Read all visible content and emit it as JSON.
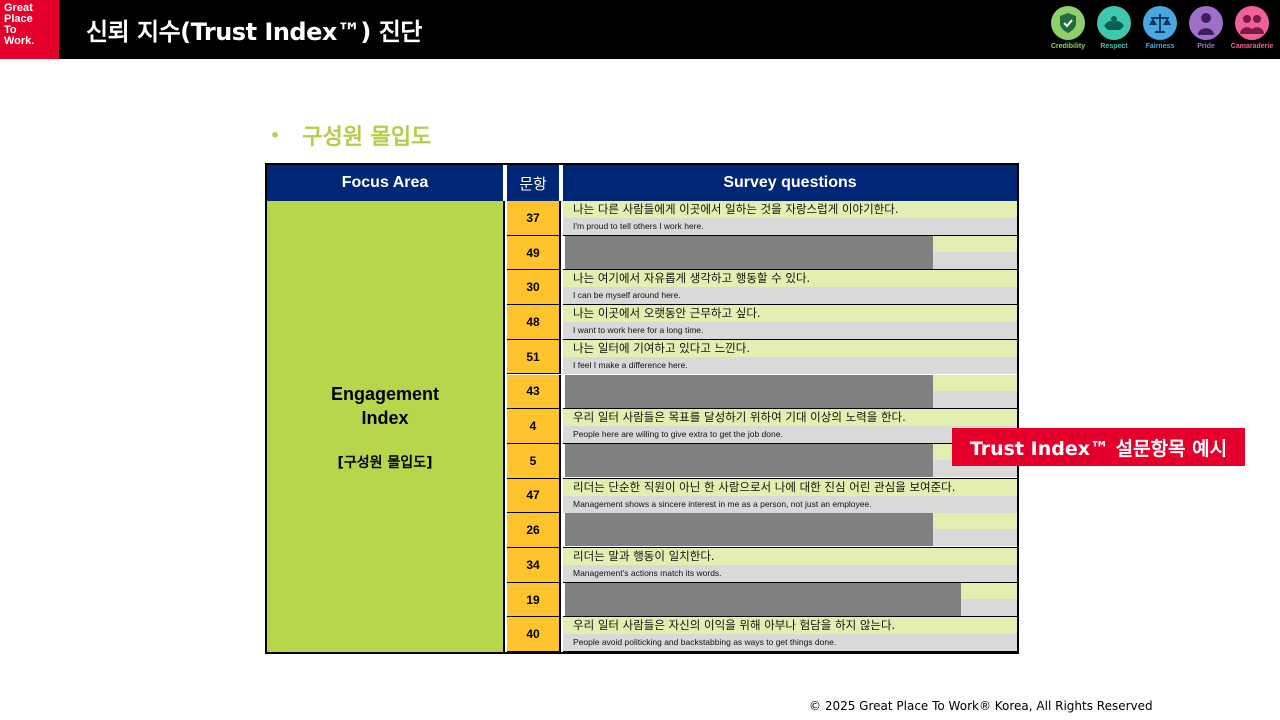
{
  "header": {
    "logo_lines": [
      "Great",
      "Place",
      "To",
      "Work."
    ],
    "title": "신뢰 지수(Trust Index™) 진단",
    "icons": [
      {
        "name": "credibility-icon",
        "label": "Credibility",
        "color": "#8ed16c"
      },
      {
        "name": "respect-icon",
        "label": "Respect",
        "color": "#3fc7b0"
      },
      {
        "name": "fairness-icon",
        "label": "Fairness",
        "color": "#4aa8e0"
      },
      {
        "name": "pride-icon",
        "label": "Pride",
        "color": "#a070c8"
      },
      {
        "name": "camaraderie-icon",
        "label": "Camaraderie",
        "color": "#f0609a"
      }
    ]
  },
  "section_title": "구성원 몰입도",
  "table": {
    "headers": {
      "focus_area": "Focus Area",
      "number": "문항",
      "questions": "Survey questions"
    },
    "focus": {
      "name_line1": "Engagement",
      "name_line2": "Index",
      "korean": "[구성원 몰입도]"
    },
    "rows": [
      {
        "num": "37",
        "ko": "나는 다른 사람들에게 이곳에서 일하는 것을 자랑스럽게 이야기한다.",
        "en": "I'm proud to tell others I work here.",
        "masked": false
      },
      {
        "num": "49",
        "masked": true
      },
      {
        "num": "30",
        "ko": "나는 여기에서 자유롭게 생각하고 행동할 수 있다.",
        "en": "I can be myself around here.",
        "masked": false
      },
      {
        "num": "48",
        "ko": "나는 이곳에서 오랫동안 근무하고 싶다.",
        "en": "I want to work here for a long time.",
        "masked": false
      },
      {
        "num": "51",
        "ko": "나는 일터에 기여하고 있다고 느낀다.",
        "en": "I feel I make a difference here.",
        "masked": false
      },
      {
        "num": "43",
        "masked": true
      },
      {
        "num": "4",
        "ko": "우리 일터 사람들은 목표를 달성하기 위하여 기대 이상의 노력을 한다.",
        "en": "People here are willing to give extra to get the job done.",
        "masked": false
      },
      {
        "num": "5",
        "masked": true
      },
      {
        "num": "47",
        "ko": "리더는 단순한 직원이 아닌 한 사람으로서 나에 대한 진심 어린 관심을 보여준다.",
        "en": "Management shows a sincere interest in me as a person, not just an employee.",
        "masked": false
      },
      {
        "num": "26",
        "masked": true
      },
      {
        "num": "34",
        "ko": "리더는 말과 행동이 일치한다.",
        "en": "Management's actions match its words.",
        "masked": false
      },
      {
        "num": "19",
        "masked": true
      },
      {
        "num": "40",
        "ko": "우리 일터 사람들은 자신의 이익을 위해 아부나 험담을 하지 않는다.",
        "en": "People avoid politicking and backstabbing as ways to get things done.",
        "masked": false
      }
    ]
  },
  "callout": "Trust Index™ 설문항목 예시",
  "footer": "© 2025 Great Place To Work® Korea, All Rights Reserved"
}
